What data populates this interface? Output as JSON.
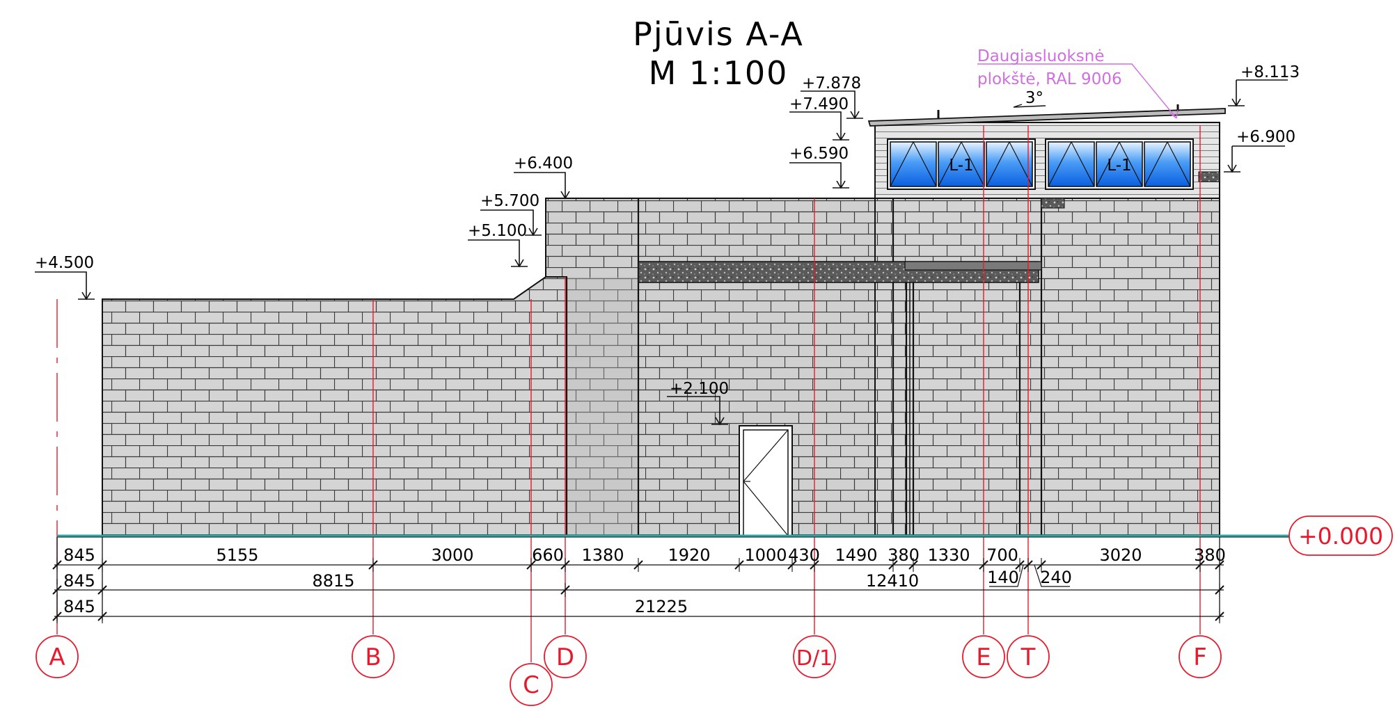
{
  "title": {
    "line1": "Pjūvis A-A",
    "line2": "M 1:100"
  },
  "note": {
    "line1": "Daugiasluoksnė",
    "line2": "plokštė, RAL 9006"
  },
  "roof_slope": "3°",
  "window_label": "L-1",
  "zero_level": "+0.000",
  "level_marks": [
    {
      "id": "lvl-4500",
      "text": "+4.500"
    },
    {
      "id": "lvl-5100",
      "text": "+5.100"
    },
    {
      "id": "lvl-5700",
      "text": "+5.700"
    },
    {
      "id": "lvl-6400",
      "text": "+6.400"
    },
    {
      "id": "lvl-6590",
      "text": "+6.590"
    },
    {
      "id": "lvl-7490",
      "text": "+7.490"
    },
    {
      "id": "lvl-7878",
      "text": "+7.878"
    },
    {
      "id": "lvl-8113",
      "text": "+8.113"
    },
    {
      "id": "lvl-6900",
      "text": "+6.900"
    },
    {
      "id": "lvl-2100",
      "text": "+2.100"
    }
  ],
  "dimensions": {
    "row1": [
      "845",
      "5155",
      "3000",
      "660",
      "1380",
      "1920",
      "1000",
      "430",
      "1490",
      "380",
      "1330",
      "700",
      "3020",
      "380"
    ],
    "row1_extra": [
      "140",
      "240"
    ],
    "row2": [
      "845",
      "8815",
      "12410"
    ],
    "row3": [
      "845",
      "21225"
    ]
  },
  "axes": [
    "A",
    "B",
    "C",
    "D",
    "D/1",
    "E",
    "T",
    "F"
  ],
  "colors": {
    "axis_red": "#e8192c",
    "window_blue": "#1877ee",
    "note_violet": "#cf6fe0",
    "ground_teal": "#2aa7a7",
    "brick_fill": "#d4d4d4"
  }
}
